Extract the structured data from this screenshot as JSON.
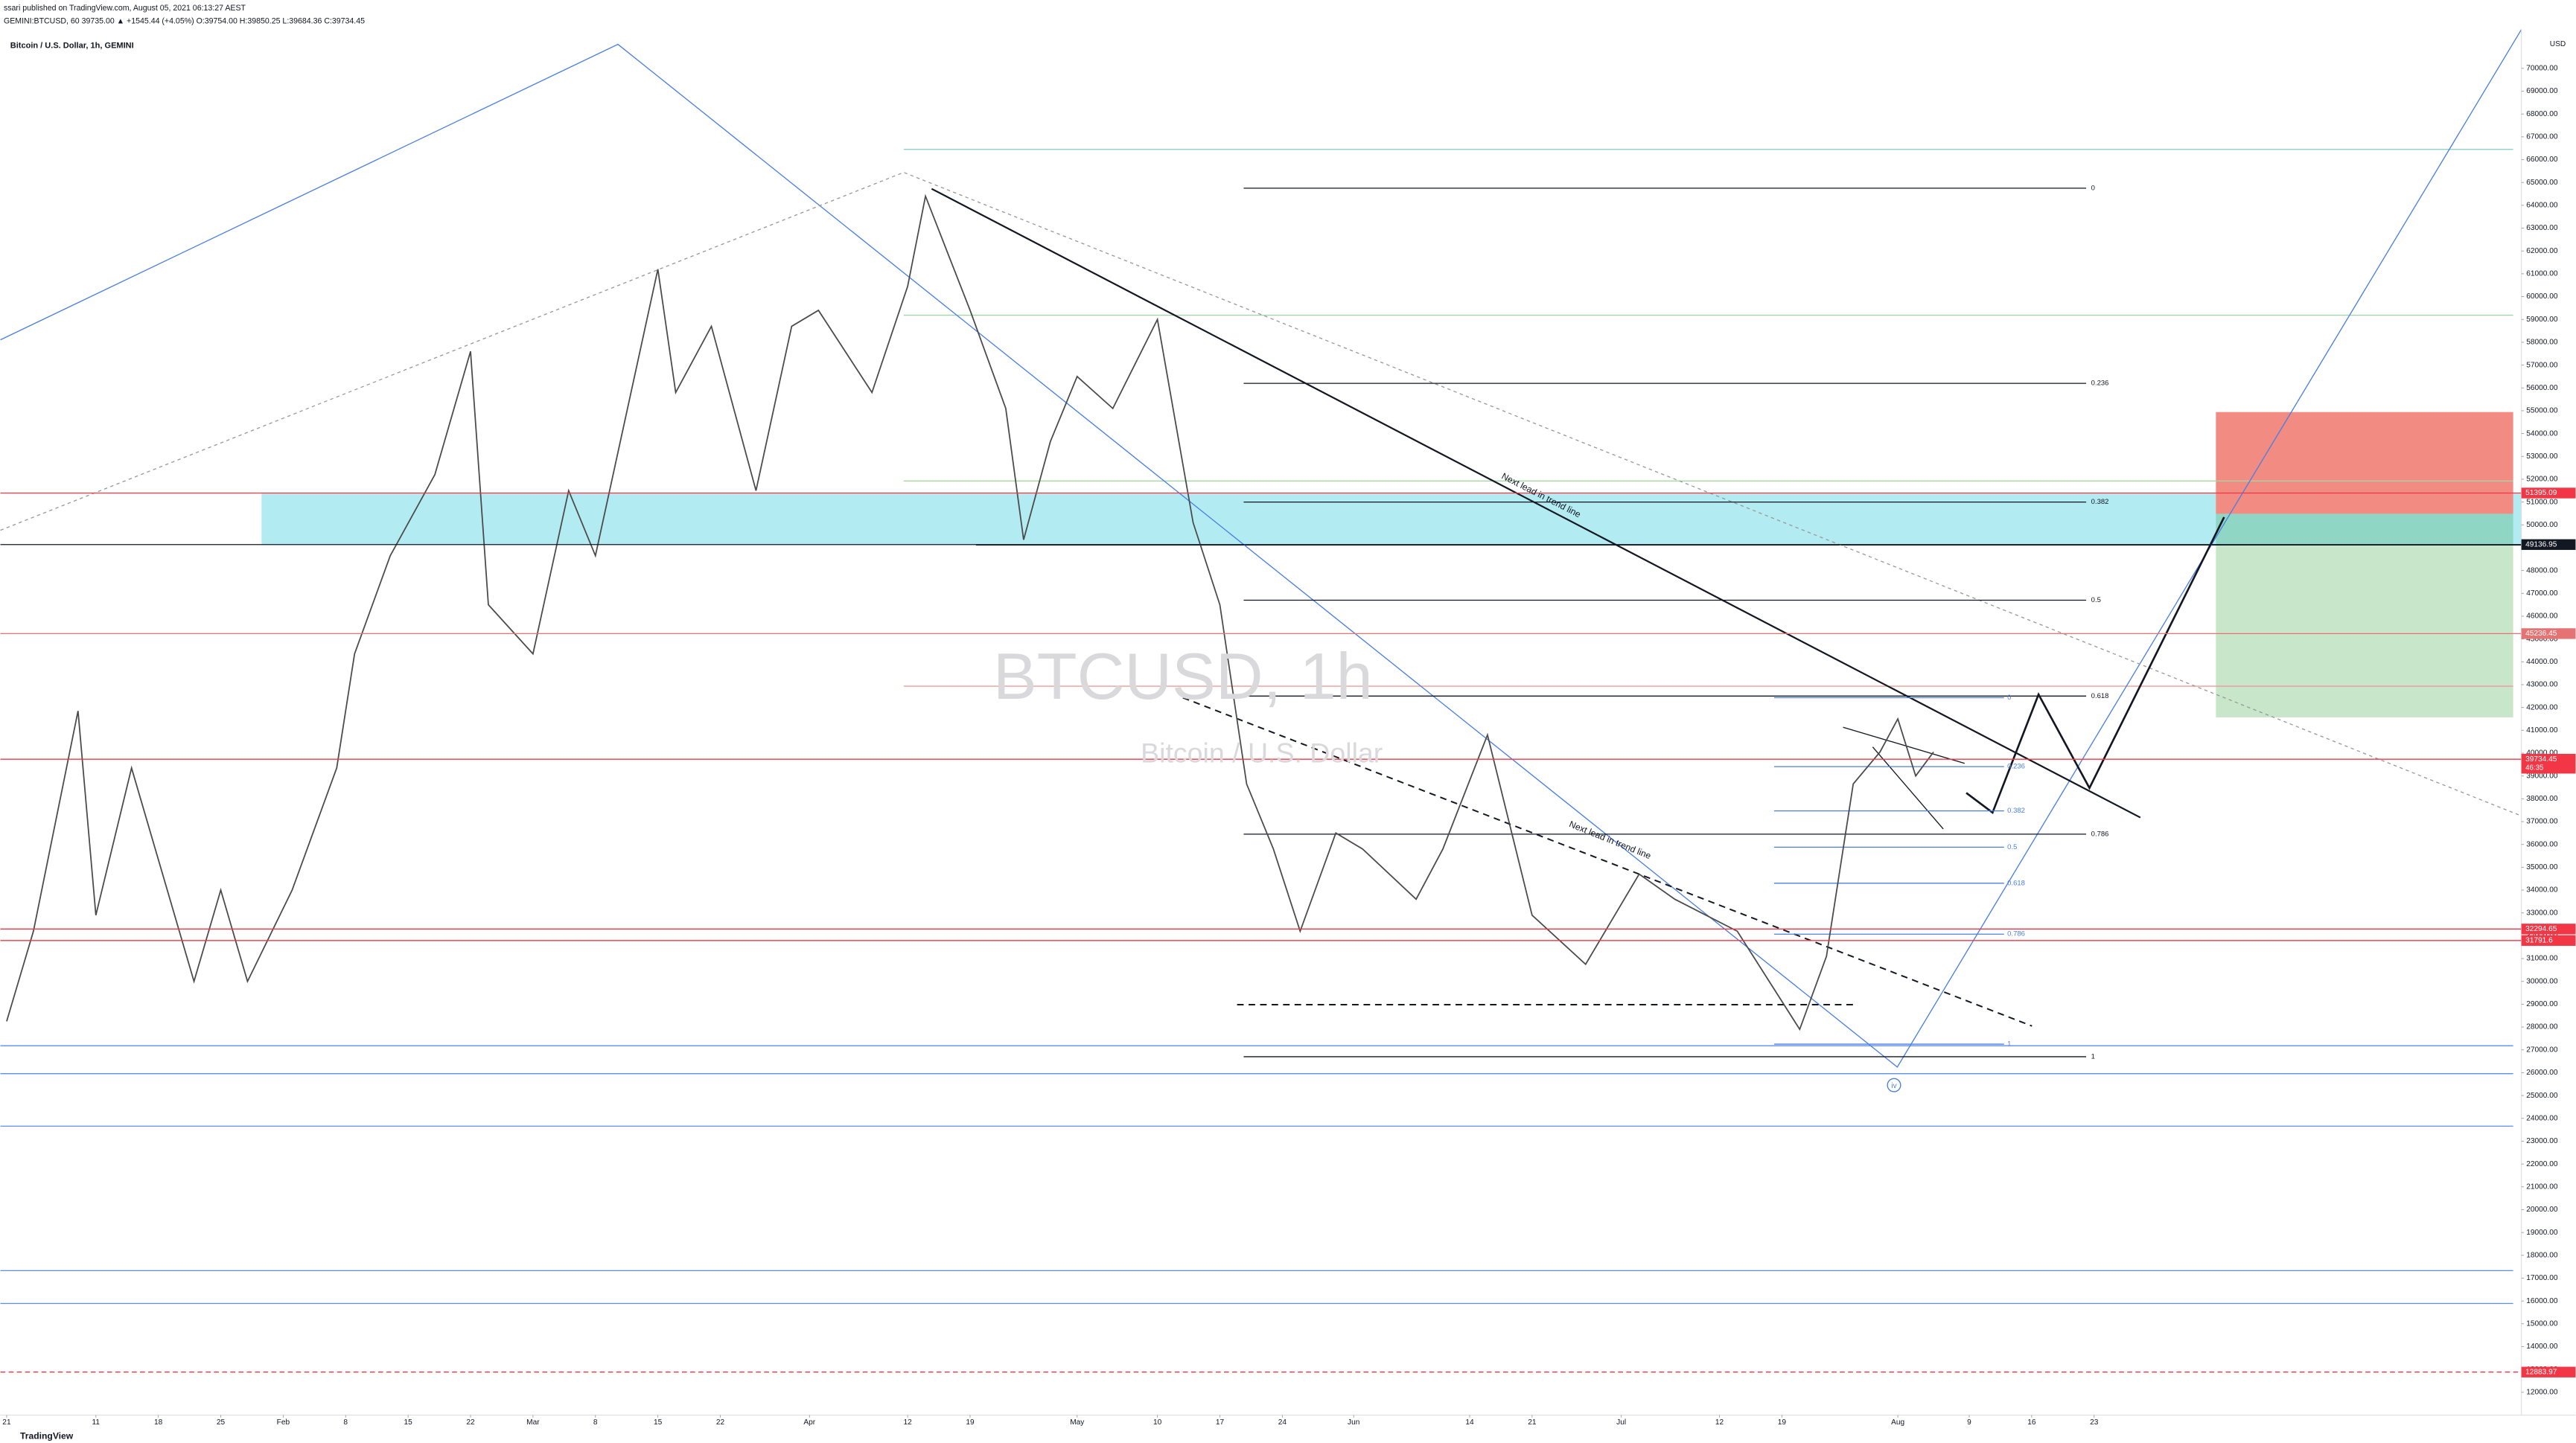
{
  "header": {
    "publisher": "ssari published on TradingView.com, August 05, 2021 06:13:27 AEST",
    "symbol_info": "GEMINI:BTCUSD, 60  39735.00 ▲ +1545.44 (+4.05%) O:39754.00 H:39850.25 L:39684.36 C:39734.45"
  },
  "footer": "TradingView",
  "chart_data": {
    "type": "line",
    "title": "Bitcoin / U.S. Dollar, 1h, GEMINI",
    "watermark": "BTCUSD, 1h",
    "watermark_subtitle": "Bitcoin / U.S. Dollar",
    "y_unit": "USD",
    "color": "#4a4a4a",
    "x": [
      0,
      3,
      8,
      10,
      14,
      21,
      24,
      27,
      32,
      37,
      39,
      43,
      48,
      52,
      54,
      59,
      63,
      66,
      73,
      75,
      79,
      84,
      88,
      91,
      97,
      101,
      103,
      108,
      112,
      114,
      117,
      120,
      124,
      129,
      133,
      136,
      139,
      142,
      145,
      149,
      152,
      158,
      161,
      166,
      171,
      177,
      183,
      187,
      194,
      201,
      204,
      207,
      210,
      212,
      214,
      216
    ],
    "values": [
      28250,
      32200,
      41850,
      32900,
      39350,
      30000,
      34000,
      30000,
      34000,
      39350,
      44350,
      48650,
      52200,
      57600,
      46500,
      44350,
      51500,
      48650,
      61200,
      55800,
      58700,
      51500,
      58700,
      59400,
      55800,
      60450,
      64400,
      59400,
      55100,
      49350,
      53650,
      56500,
      55100,
      59000,
      50100,
      46500,
      38650,
      35800,
      32200,
      36500,
      35800,
      33600,
      35800,
      40800,
      32900,
      30750,
      34700,
      33600,
      32200,
      27900,
      31100,
      38650,
      40050,
      41500,
      39000,
      40050
    ],
    "xlim": [
      -0.7,
      281.9
    ],
    "ylim": [
      11000,
      71700
    ],
    "xticks": [
      {
        "value": 0,
        "label": "21"
      },
      {
        "value": 10,
        "label": "11"
      },
      {
        "value": 17,
        "label": "18"
      },
      {
        "value": 24,
        "label": "25"
      },
      {
        "value": 31,
        "label": "Feb"
      },
      {
        "value": 38,
        "label": "8"
      },
      {
        "value": 45,
        "label": "15"
      },
      {
        "value": 52,
        "label": "22"
      },
      {
        "value": 59,
        "label": "Mar"
      },
      {
        "value": 66,
        "label": "8"
      },
      {
        "value": 73,
        "label": "15"
      },
      {
        "value": 80,
        "label": "22"
      },
      {
        "value": 90,
        "label": "Apr"
      },
      {
        "value": 101,
        "label": "12"
      },
      {
        "value": 108,
        "label": "19"
      },
      {
        "value": 120,
        "label": "May"
      },
      {
        "value": 129,
        "label": "10"
      },
      {
        "value": 136,
        "label": "17"
      },
      {
        "value": 143,
        "label": "24"
      },
      {
        "value": 151,
        "label": "Jun"
      },
      {
        "value": 164,
        "label": "14"
      },
      {
        "value": 171,
        "label": "21"
      },
      {
        "value": 181,
        "label": "Jul"
      },
      {
        "value": 192,
        "label": "12"
      },
      {
        "value": 199,
        "label": "19"
      },
      {
        "value": 212,
        "label": "Aug"
      },
      {
        "value": 220,
        "label": "9"
      },
      {
        "value": 227,
        "label": "16"
      },
      {
        "value": 234,
        "label": "23"
      }
    ],
    "yticks": [
      {
        "value": 12000,
        "label": "12000.00"
      },
      {
        "value": 13000,
        "label": "13000.00"
      },
      {
        "value": 14000,
        "label": "14000.00"
      },
      {
        "value": 15000,
        "label": "15000.00"
      },
      {
        "value": 16000,
        "label": "16000.00"
      },
      {
        "value": 17000,
        "label": "17000.00"
      },
      {
        "value": 18000,
        "label": "18000.00"
      },
      {
        "value": 19000,
        "label": "19000.00"
      },
      {
        "value": 20000,
        "label": "20000.00"
      },
      {
        "value": 21000,
        "label": "21000.00"
      },
      {
        "value": 22000,
        "label": "22000.00"
      },
      {
        "value": 23000,
        "label": "23000.00"
      },
      {
        "value": 24000,
        "label": "24000.00"
      },
      {
        "value": 25000,
        "label": "25000.00"
      },
      {
        "value": 26000,
        "label": "26000.00"
      },
      {
        "value": 27000,
        "label": "27000.00"
      },
      {
        "value": 28000,
        "label": "28000.00"
      },
      {
        "value": 29000,
        "label": "29000.00"
      },
      {
        "value": 30000,
        "label": "30000.00"
      },
      {
        "value": 31000,
        "label": "31000.00"
      },
      {
        "value": 32000,
        "label": "32000.00"
      },
      {
        "value": 33000,
        "label": "33000.00"
      },
      {
        "value": 34000,
        "label": "34000.00"
      },
      {
        "value": 35000,
        "label": "35000.00"
      },
      {
        "value": 36000,
        "label": "36000.00"
      },
      {
        "value": 37000,
        "label": "37000.00"
      },
      {
        "value": 38000,
        "label": "38000.00"
      },
      {
        "value": 39000,
        "label": "39000.00"
      },
      {
        "value": 40000,
        "label": "40000.00"
      },
      {
        "value": 41000,
        "label": "41000.00"
      },
      {
        "value": 42000,
        "label": "42000.00"
      },
      {
        "value": 43000,
        "label": "43000.00"
      },
      {
        "value": 44000,
        "label": "44000.00"
      },
      {
        "value": 45000,
        "label": "45000.00"
      },
      {
        "value": 46000,
        "label": "46000.00"
      },
      {
        "value": 47000,
        "label": "47000.00"
      },
      {
        "value": 48000,
        "label": "48000.00"
      },
      {
        "value": 49000,
        "label": "49000.00"
      },
      {
        "value": 50000,
        "label": "50000.00"
      },
      {
        "value": 51000,
        "label": "51000.00"
      },
      {
        "value": 52000,
        "label": "52000.00"
      },
      {
        "value": 53000,
        "label": "53000.00"
      },
      {
        "value": 54000,
        "label": "54000.00"
      },
      {
        "value": 55000,
        "label": "55000.00"
      },
      {
        "value": 56000,
        "label": "56000.00"
      },
      {
        "value": 57000,
        "label": "57000.00"
      },
      {
        "value": 58000,
        "label": "58000.00"
      },
      {
        "value": 59000,
        "label": "59000.00"
      },
      {
        "value": 60000,
        "label": "60000.00"
      },
      {
        "value": 61000,
        "label": "61000.00"
      },
      {
        "value": 62000,
        "label": "62000.00"
      },
      {
        "value": 63000,
        "label": "63000.00"
      },
      {
        "value": 64000,
        "label": "64000.00"
      },
      {
        "value": 65000,
        "label": "65000.00"
      },
      {
        "value": 66000,
        "label": "66000.00"
      },
      {
        "value": 67000,
        "label": "67000.00"
      },
      {
        "value": 68000,
        "label": "68000.00"
      },
      {
        "value": 69000,
        "label": "69000.00"
      },
      {
        "value": 70000,
        "label": "70000.00"
      }
    ],
    "price_labels": [
      {
        "value": 51395.09,
        "color": "#f23645"
      },
      {
        "value": 49136.95,
        "color": "#131722"
      },
      {
        "value": 45236.45,
        "color": "#e57373"
      },
      {
        "value": 39734.45,
        "color": "#f23645",
        "countdown": "46:35"
      },
      {
        "value": 32294.65,
        "color": "#f23645"
      },
      {
        "value": 31791.6,
        "color": "#f23645"
      },
      {
        "value": 12883.97,
        "color": "#f23645"
      }
    ],
    "fib_major": [
      {
        "label": "0",
        "value": 64750
      },
      {
        "label": "0.236",
        "value": 56200
      },
      {
        "label": "0.382",
        "value": 51000
      },
      {
        "label": "0.5",
        "value": 46700
      },
      {
        "label": "0.618",
        "value": 42500
      },
      {
        "label": "0.786",
        "value": 36450
      },
      {
        "label": "1",
        "value": 26700
      }
    ],
    "fib_minor": [
      {
        "label": "0",
        "value": 42430
      },
      {
        "label": "0.236",
        "value": 39410
      },
      {
        "label": "0.382",
        "value": 37470
      },
      {
        "label": "0.5",
        "value": 35880
      },
      {
        "label": "0.618",
        "value": 34300
      },
      {
        "label": "0.786",
        "value": 32070
      },
      {
        "label": "1",
        "value": 27250
      }
    ],
    "annotations": [
      "Next lead in trend line",
      "Next lead in trend line",
      "iv"
    ]
  }
}
